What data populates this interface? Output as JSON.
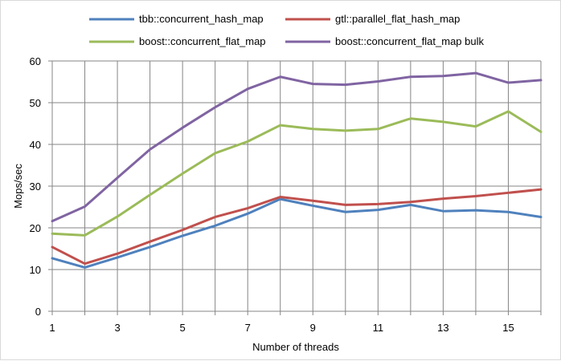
{
  "chart_data": {
    "type": "line",
    "title": "",
    "xlabel": "Number of threads",
    "ylabel": "Mops/sec",
    "xlim": [
      1,
      16
    ],
    "ylim": [
      0,
      60
    ],
    "xticks": [
      1,
      3,
      5,
      7,
      9,
      11,
      13,
      15
    ],
    "yticks": [
      0,
      10,
      20,
      30,
      40,
      50,
      60
    ],
    "grid": "vertical and horizontal",
    "legend_position": "top",
    "x": [
      1,
      2,
      3,
      4,
      5,
      6,
      7,
      8,
      9,
      10,
      11,
      12,
      13,
      14,
      15,
      16
    ],
    "series": [
      {
        "name": "tbb::concurrent_hash_map",
        "color": "#4f81bd",
        "values": [
          12.7,
          10.5,
          12.9,
          15.4,
          18.1,
          20.5,
          23.4,
          26.9,
          25.3,
          23.8,
          24.3,
          25.5,
          24.0,
          24.2,
          23.8,
          22.6
        ]
      },
      {
        "name": "gtl::parallel_flat_hash_map",
        "color": "#c0504d",
        "values": [
          15.4,
          11.4,
          13.8,
          16.7,
          19.5,
          22.6,
          24.7,
          27.4,
          26.5,
          25.5,
          25.7,
          26.2,
          27.0,
          27.6,
          28.4,
          29.2
        ]
      },
      {
        "name": "boost::concurrent_flat_map",
        "color": "#9bbb59",
        "values": [
          18.6,
          18.2,
          22.7,
          27.9,
          33.0,
          37.9,
          40.7,
          44.6,
          43.7,
          43.3,
          43.7,
          46.2,
          45.4,
          44.3,
          47.9,
          43.0
        ]
      },
      {
        "name": "boost::concurrent_flat_map bulk",
        "color": "#8064a2",
        "values": [
          21.6,
          25.1,
          32.0,
          38.8,
          44.0,
          48.9,
          53.3,
          56.2,
          54.5,
          54.3,
          55.1,
          56.2,
          56.4,
          57.1,
          54.8,
          55.4
        ]
      }
    ]
  }
}
